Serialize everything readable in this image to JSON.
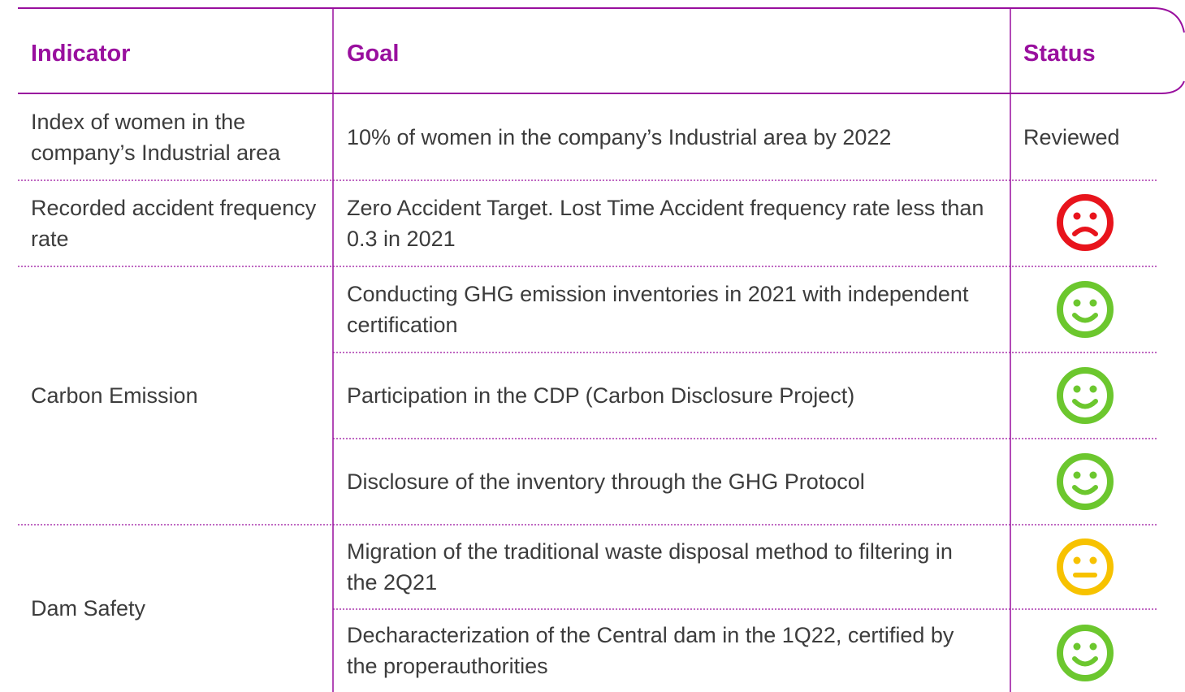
{
  "header": {
    "indicator": "Indicator",
    "goal": "Goal",
    "status": "Status"
  },
  "rows": [
    {
      "indicator": "Index of women in the company’s Industrial area",
      "goals": [
        {
          "text": "10% of women in the company’s Industrial area by 2022",
          "status": "Reviewed"
        }
      ]
    },
    {
      "indicator": "Recorded accident frequency rate",
      "goals": [
        {
          "text": "Zero Accident Target. Lost Time Accident frequency rate less than 0.3 in 2021"
        }
      ]
    },
    {
      "indicator": "Carbon Emission",
      "goals": [
        {
          "text": "Conducting GHG emission inventories in 2021 with independent certification"
        },
        {
          "text": "Participation in the CDP (Carbon Disclosure Project)"
        },
        {
          "text": "Disclosure of the inventory through the GHG Protocol"
        }
      ]
    },
    {
      "indicator": "Dam Safety",
      "goals": [
        {
          "text": "Migration of the traditional waste disposal method to filtering in the 2Q21"
        },
        {
          "text": "Decharacterization of the Central dam in the 1Q22, certified by the properauthorities"
        }
      ]
    }
  ]
}
